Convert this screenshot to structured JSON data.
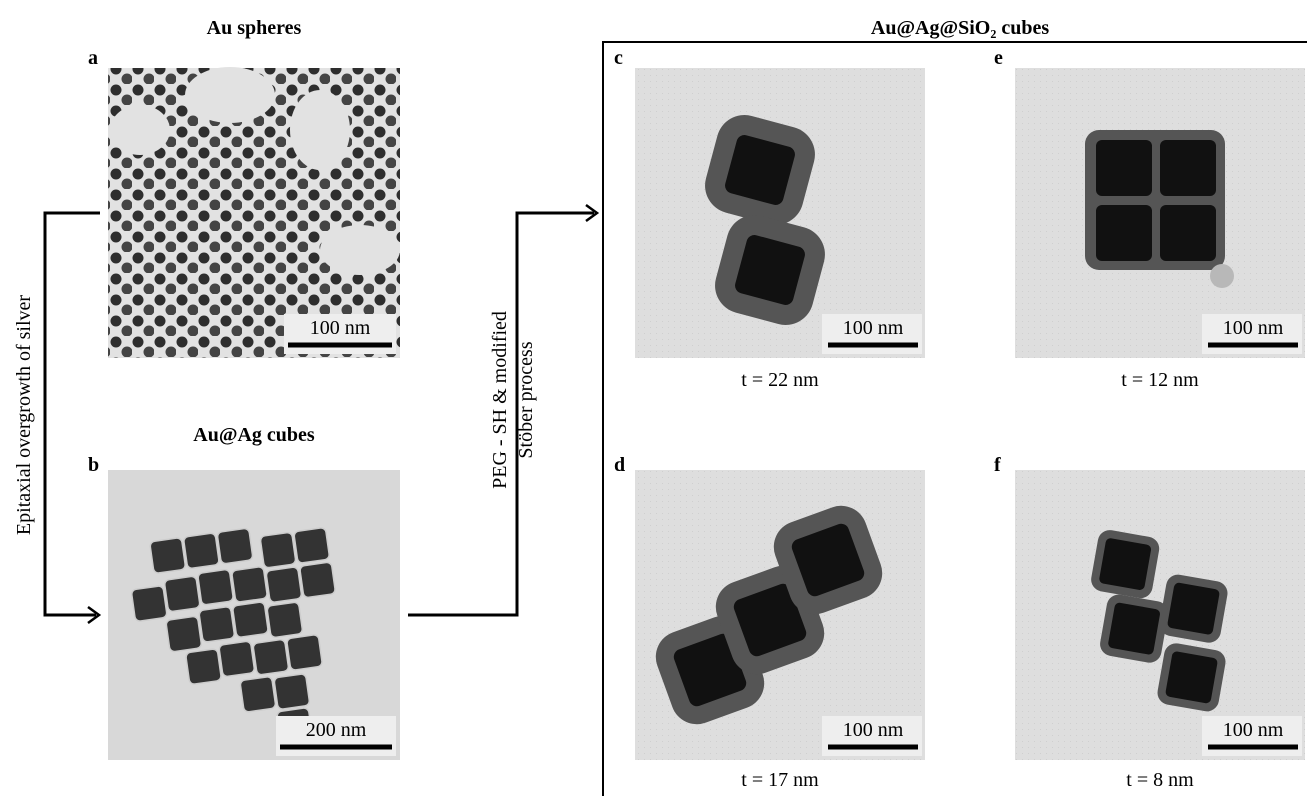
{
  "panels": [
    {
      "label": "a",
      "title": "Au spheres",
      "scale_bar": "100 nm"
    },
    {
      "label": "b",
      "title": "Au@Ag cubes",
      "scale_bar": "200 nm"
    },
    {
      "label": "c",
      "scale_bar": "100 nm",
      "caption": "t = 22 nm"
    },
    {
      "label": "d",
      "scale_bar": "100 nm",
      "caption": "t = 17 nm"
    },
    {
      "label": "e",
      "scale_bar": "100 nm",
      "caption": "t = 12 nm"
    },
    {
      "label": "f",
      "scale_bar": "100 nm",
      "caption": "t = 8 nm"
    }
  ],
  "group_title": "Au@Ag@SiO₂ cubes",
  "arrows": [
    {
      "label": "Epitaxial overgrowth of silver"
    },
    {
      "label_lines": [
        "PEG - SH & modified",
        "Stöber process"
      ]
    }
  ]
}
